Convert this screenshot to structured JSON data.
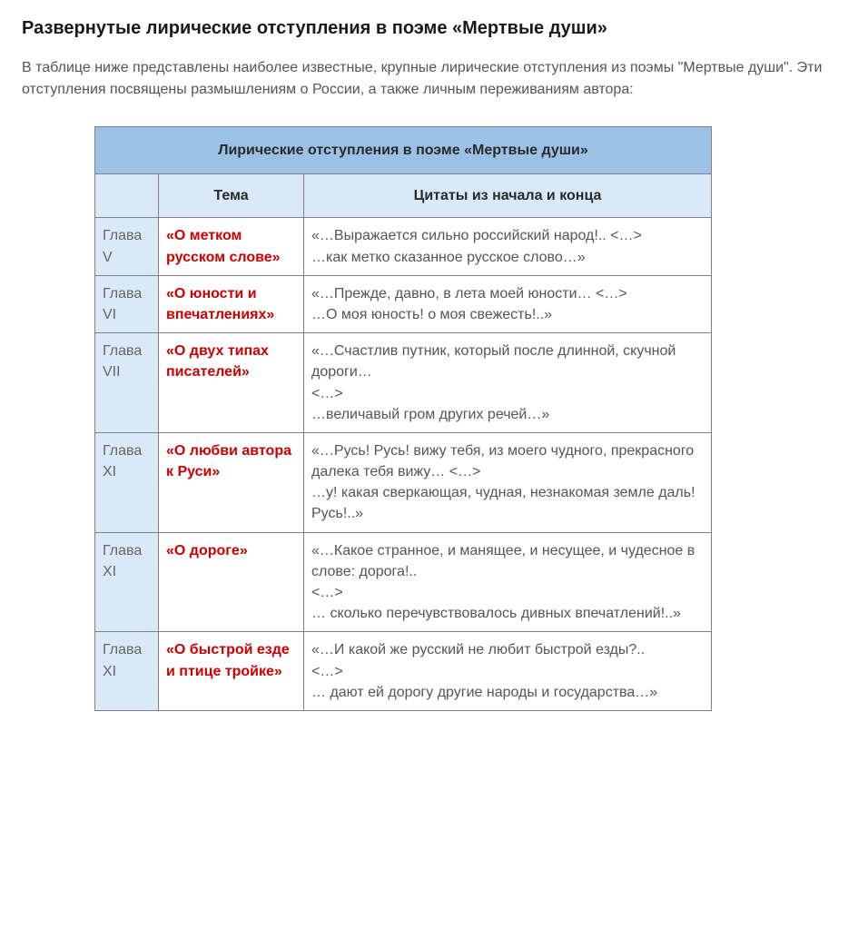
{
  "page": {
    "heading": "Развернутые лирические отступления в поэме «Мертвые души»",
    "intro": "В таблице ниже представлены наиболее известные, крупные лирические отступления из поэмы \"Мертвые души\". Эти отступления посвящены размышлениям о России, а также личным переживаниям автора:"
  },
  "table": {
    "title": "Лирические отступления в поэме «Мертвые души»",
    "columns": {
      "blank": "",
      "theme": "Тема",
      "quote": "Цитаты из начала и конца"
    },
    "colors": {
      "title_bg": "#9bc2e6",
      "header_bg": "#d9e9f7",
      "chapter_bg": "#d9e9f7",
      "border": "#808080",
      "theme_link": "#cc0000",
      "text": "#555555"
    },
    "column_widths": {
      "chapter": 70,
      "theme": 160,
      "quote": 450
    },
    "rows": [
      {
        "chapter": "Глава V",
        "theme": "«О метком русском слове»",
        "quote": "«…Выражается сильно российский народ!.. <…>\n…как метко сказанное русское слово…»"
      },
      {
        "chapter": "Глава VI",
        "theme": "«О юности и впечатлениях»",
        "quote": "«…Прежде, давно, в лета моей юности… <…>\n…О моя юность! о моя свежесть!..»"
      },
      {
        "chapter": "Глава VII",
        "theme": "«О двух типах писателей»",
        "quote": " «…Счастлив путник, который после длинной, скучной дороги…\n<…>\n…величавый гром других речей…»"
      },
      {
        "chapter": "Глава XI",
        "theme": "«О любви автора к Руси»",
        "quote": "«…Русь! Русь! вижу тебя, из моего чудного, прекрасного далека тебя вижу… <…>\n…у! какая сверкающая, чудная, незнакомая земле даль! Русь!..»"
      },
      {
        "chapter": "Глава XI",
        "theme": "«О дороге»",
        "quote": "«…Какое странное, и манящее, и несущее, и чудесное в слове: дорога!..\n<…>\n… сколько перечувствовалось дивных впечатлений!..»"
      },
      {
        "chapter": "Глава XI",
        "theme": "«О быстрой езде и птице тройке»",
        "quote": "«…И какой же русский не любит быстрой езды?..\n<…>\n… дают ей дорогу другие народы и государства…»"
      }
    ]
  }
}
